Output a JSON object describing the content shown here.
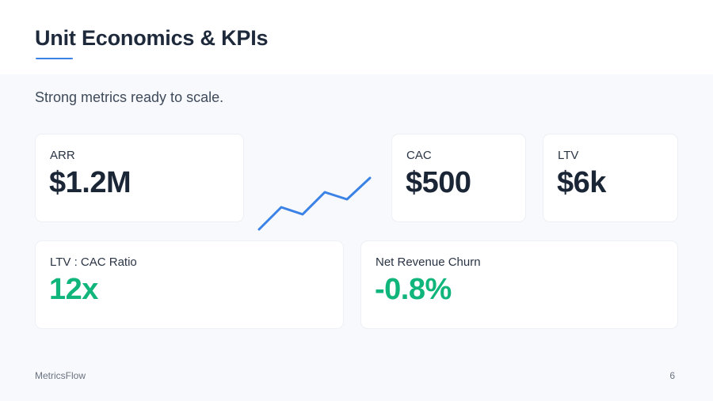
{
  "slide": {
    "title": "Unit Economics & KPIs",
    "subtitle": "Strong metrics ready to scale.",
    "accent_color": "#3b82e6",
    "positive_color": "#10b57c"
  },
  "metrics": {
    "arr": {
      "label": "ARR",
      "value": "$1.2M"
    },
    "cac": {
      "label": "CAC",
      "value": "$500"
    },
    "ltv": {
      "label": "LTV",
      "value": "$6k"
    },
    "ratio": {
      "label": "LTV : CAC Ratio",
      "value": "12x"
    },
    "churn": {
      "label": "Net Revenue Churn",
      "value": "-0.8%"
    }
  },
  "footer": {
    "brand": "MetricsFlow",
    "page_number": "6"
  }
}
